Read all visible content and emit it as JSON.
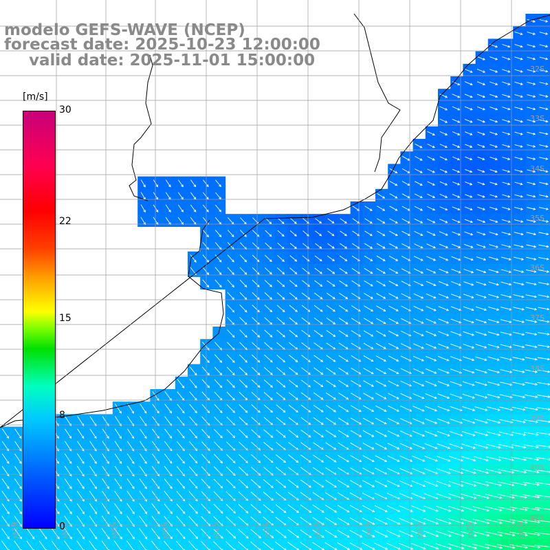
{
  "title": {
    "model": "modelo GEFS-WAVE (NCEP)",
    "forecast": "forecast date: 2025-10-23 12:00:00",
    "valid": "valid date: 2025-11-01 15:00:00"
  },
  "colorbar": {
    "unit": "[m/s]",
    "min": 0,
    "max": 30,
    "ticks": [
      {
        "value": 30,
        "label": "30"
      },
      {
        "value": 22,
        "label": "22"
      },
      {
        "value": 15,
        "label": "15"
      },
      {
        "value": 8,
        "label": "8"
      },
      {
        "value": 0,
        "label": "0"
      }
    ]
  },
  "map": {
    "lon_range": [
      -61.5,
      -50.5
    ],
    "lat_range": [
      -41.5,
      -30.7
    ],
    "lat_labels": [
      "32S",
      "33S",
      "34S",
      "35S",
      "36S",
      "37S",
      "38S",
      "39S",
      "40S",
      "41S"
    ],
    "lon_labels": [
      "61W",
      "60W",
      "59W",
      "58W",
      "57W",
      "56W",
      "55W",
      "54W",
      "53W",
      "52W",
      "51W"
    ],
    "colors": {
      "land": "#ffffff",
      "coastline": "#000000",
      "grid": "#9a9a9a",
      "arrows": "#ffffff",
      "title_text": "#8a8a8a"
    }
  }
}
